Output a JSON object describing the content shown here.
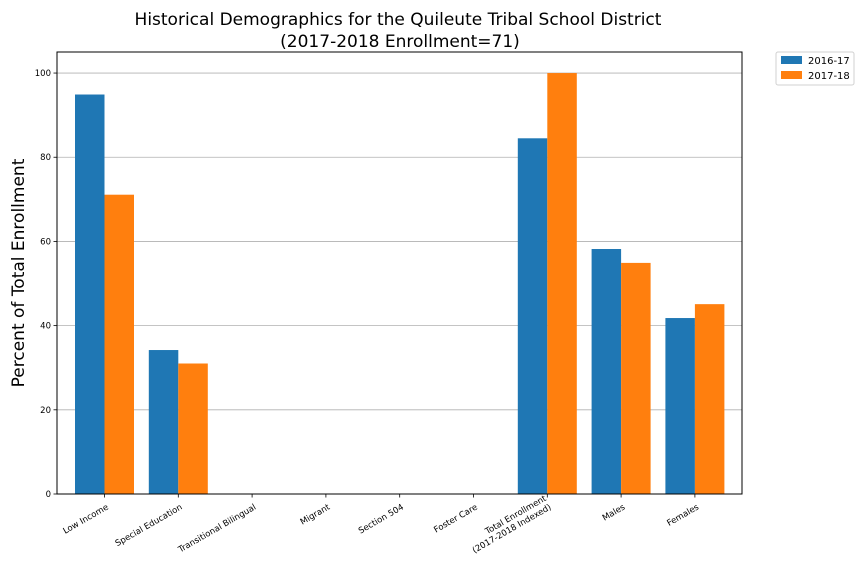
{
  "chart_data": {
    "type": "bar",
    "title": "Historical Demographics for the Quileute Tribal School District",
    "subtitle": "(2017-2018 Enrollment=71)",
    "xlabel": "",
    "ylabel": "Percent of Total Enrollment",
    "ylim": [
      0,
      105
    ],
    "yticks": [
      0,
      20,
      40,
      60,
      80,
      100
    ],
    "grid": "horizontal",
    "legend_placement": "outside top-right",
    "categories": [
      [
        "Low Income"
      ],
      [
        "Special Education"
      ],
      [
        "Transitional Bilingual"
      ],
      [
        "Migrant"
      ],
      [
        "Section 504"
      ],
      [
        "Foster Care"
      ],
      [
        "Total Enrollment",
        "(2017-2018 Indexed)"
      ],
      [
        "Males"
      ],
      [
        "Females"
      ]
    ],
    "series": [
      {
        "name": "2016-17",
        "color": "#1f77b4",
        "values": [
          94.9,
          34.2,
          0,
          0,
          0,
          0,
          84.5,
          58.2,
          41.8
        ]
      },
      {
        "name": "2017-18",
        "color": "#ff7f0e",
        "values": [
          71.1,
          31.0,
          0,
          0,
          0,
          0,
          100.0,
          54.9,
          45.1
        ]
      }
    ]
  }
}
